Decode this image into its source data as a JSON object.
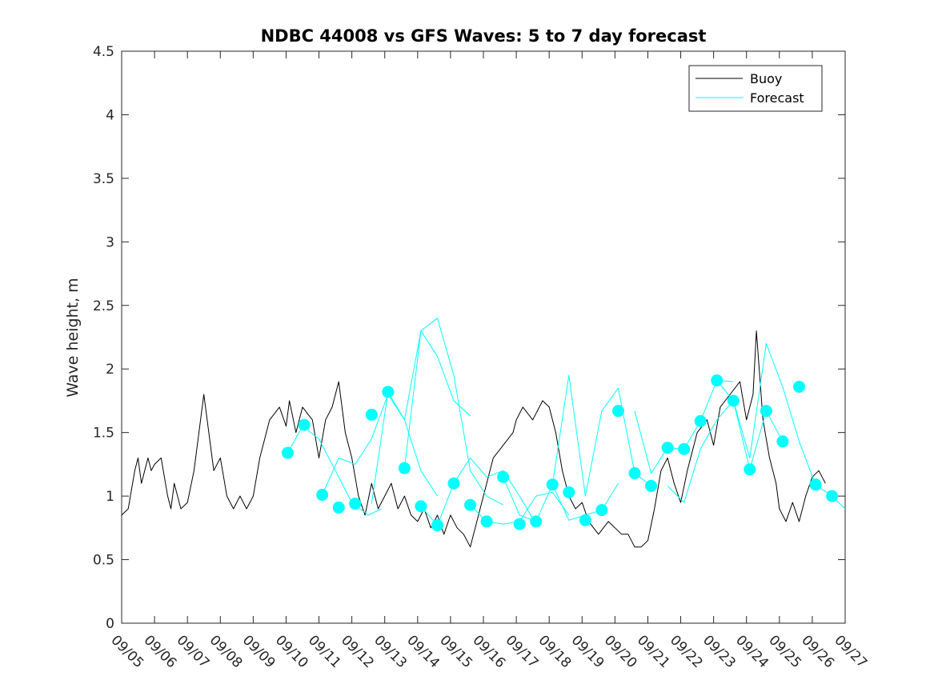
{
  "chart_data": {
    "type": "line",
    "title": "NDBC 44008 vs GFS Waves: 5 to 7 day forecast",
    "xlabel": "",
    "ylabel": "Wave height, m",
    "ylim": [
      0,
      4.5
    ],
    "xlim": [
      0,
      22
    ],
    "y_ticks": [
      "0",
      "0.5",
      "1",
      "1.5",
      "2",
      "2.5",
      "3",
      "3.5",
      "4",
      "4.5"
    ],
    "x_ticks": [
      "09/05",
      "09/06",
      "09/07",
      "09/08",
      "09/09",
      "09/10",
      "09/11",
      "09/12",
      "09/13",
      "09/14",
      "09/15",
      "09/16",
      "09/17",
      "09/18",
      "09/19",
      "09/20",
      "09/21",
      "09/22",
      "09/23",
      "09/24",
      "09/25",
      "09/26",
      "09/27"
    ],
    "legend": [
      "Buoy",
      "Forecast"
    ],
    "legend_location": "top-right",
    "colors": {
      "buoy": "#000000",
      "forecast": "#00ffff"
    },
    "series": [
      {
        "name": "Buoy",
        "x": [
          0,
          0.2,
          0.4,
          0.5,
          0.6,
          0.8,
          0.9,
          1.0,
          1.2,
          1.4,
          1.5,
          1.6,
          1.8,
          2.0,
          2.2,
          2.5,
          2.8,
          3.0,
          3.2,
          3.4,
          3.6,
          3.8,
          4.0,
          4.2,
          4.5,
          4.8,
          5.0,
          5.1,
          5.3,
          5.5,
          5.8,
          6.0,
          6.2,
          6.4,
          6.6,
          6.8,
          7.0,
          7.2,
          7.4,
          7.6,
          7.8,
          8.0,
          8.2,
          8.4,
          8.6,
          8.8,
          9.0,
          9.2,
          9.4,
          9.6,
          9.8,
          10.0,
          10.2,
          10.4,
          10.6,
          10.8,
          11.0,
          11.3,
          11.6,
          11.9,
          12.0,
          12.2,
          12.5,
          12.8,
          13.0,
          13.2,
          13.4,
          13.6,
          13.8,
          14.0,
          14.2,
          14.5,
          14.8,
          15.0,
          15.2,
          15.4,
          15.6,
          15.8,
          16.0,
          16.2,
          16.4,
          16.6,
          16.8,
          17.0,
          17.2,
          17.5,
          17.8,
          18.0,
          18.2,
          18.5,
          18.8,
          19.0,
          19.2,
          19.3,
          19.5,
          19.7,
          19.9,
          20.0,
          20.2,
          20.4,
          20.6,
          20.8,
          21.0,
          21.2,
          21.4
        ],
        "values": [
          0.85,
          0.9,
          1.2,
          1.3,
          1.1,
          1.3,
          1.2,
          1.25,
          1.3,
          1.0,
          0.9,
          1.1,
          0.9,
          0.95,
          1.2,
          1.8,
          1.2,
          1.3,
          1.0,
          0.9,
          1.0,
          0.9,
          1.0,
          1.3,
          1.6,
          1.7,
          1.55,
          1.75,
          1.5,
          1.7,
          1.6,
          1.3,
          1.6,
          1.7,
          1.9,
          1.5,
          1.3,
          1.0,
          0.85,
          1.1,
          0.9,
          1.0,
          1.1,
          0.9,
          1.0,
          0.85,
          0.8,
          0.9,
          0.75,
          0.85,
          0.7,
          0.85,
          0.75,
          0.7,
          0.6,
          0.8,
          1.0,
          1.3,
          1.4,
          1.5,
          1.6,
          1.7,
          1.6,
          1.75,
          1.7,
          1.5,
          1.2,
          1.0,
          0.9,
          0.95,
          0.8,
          0.7,
          0.8,
          0.75,
          0.7,
          0.7,
          0.6,
          0.6,
          0.65,
          0.9,
          1.2,
          1.3,
          1.1,
          0.95,
          1.2,
          1.5,
          1.6,
          1.4,
          1.7,
          1.8,
          1.9,
          1.6,
          1.8,
          2.3,
          1.6,
          1.3,
          1.1,
          0.9,
          0.8,
          0.95,
          0.8,
          1.0,
          1.15,
          1.2,
          1.1
        ]
      },
      {
        "name": "Forecast",
        "x": [
          5.05,
          5.5,
          6.0,
          6.5,
          7.0,
          7.5,
          7.9
        ],
        "values": [
          1.34,
          1.55,
          1.45,
          1.2,
          0.95,
          0.85,
          0.9
        ]
      },
      {
        "name": "Forecast",
        "x": [
          6.1,
          6.6,
          7.1,
          7.6,
          8.1,
          8.6,
          9.1,
          9.6
        ],
        "values": [
          1.01,
          1.3,
          1.25,
          1.45,
          1.8,
          1.6,
          1.2,
          1.0
        ]
      },
      {
        "name": "Forecast",
        "x": [
          7.6,
          8.1,
          8.6,
          9.1,
          9.6,
          10.1,
          10.6
        ],
        "values": [
          0.94,
          1.82,
          1.6,
          2.3,
          2.1,
          1.75,
          1.63
        ]
      },
      {
        "name": "Forecast",
        "x": [
          8.6,
          9.1,
          9.6,
          10.1,
          10.6,
          11.1,
          11.6
        ],
        "values": [
          1.22,
          2.3,
          2.4,
          1.95,
          1.2,
          1.0,
          0.93
        ]
      },
      {
        "name": "Forecast",
        "x": [
          9.1,
          9.6,
          10.1,
          10.6,
          11.1,
          11.6,
          12.1,
          12.6
        ],
        "values": [
          0.92,
          0.77,
          1.1,
          1.3,
          1.15,
          1.2,
          1.0,
          0.78
        ]
      },
      {
        "name": "Forecast",
        "x": [
          10.6,
          11.1,
          11.6,
          12.1,
          12.6,
          13.1,
          13.6
        ],
        "values": [
          0.93,
          0.8,
          0.78,
          0.8,
          1.0,
          1.03,
          0.85
        ]
      },
      {
        "name": "Forecast",
        "x": [
          11.6,
          12.1,
          12.6,
          13.1,
          13.6,
          14.1,
          14.6,
          15.1
        ],
        "values": [
          1.15,
          0.85,
          0.8,
          1.09,
          0.81,
          0.85,
          0.89,
          1.1
        ]
      },
      {
        "name": "Forecast",
        "x": [
          13.1,
          13.6,
          14.1,
          14.6,
          15.1,
          15.6,
          16.1
        ],
        "values": [
          1.09,
          1.95,
          1.0,
          1.67,
          1.85,
          1.18,
          1.08
        ]
      },
      {
        "name": "Forecast",
        "x": [
          15.6,
          16.1,
          16.6,
          17.1,
          17.6,
          18.1,
          18.6
        ],
        "values": [
          1.67,
          1.18,
          1.38,
          1.37,
          1.59,
          1.91,
          1.9
        ]
      },
      {
        "name": "Forecast",
        "x": [
          16.6,
          17.1,
          17.6,
          18.1,
          18.6,
          19.1,
          19.6,
          20.1
        ],
        "values": [
          1.08,
          0.95,
          1.37,
          1.6,
          1.75,
          1.21,
          1.67,
          1.43
        ]
      },
      {
        "name": "Forecast",
        "x": [
          18.1,
          18.6,
          19.1,
          19.6,
          20.1,
          20.6,
          21.1,
          21.6,
          22.0
        ],
        "values": [
          1.91,
          1.75,
          1.3,
          2.2,
          1.86,
          1.43,
          1.09,
          1.0,
          0.9
        ]
      }
    ],
    "markers": {
      "name": "Forecast start points",
      "x": [
        5.05,
        5.55,
        6.1,
        6.6,
        7.1,
        7.6,
        8.1,
        8.6,
        9.1,
        9.6,
        10.1,
        10.6,
        11.1,
        11.6,
        12.1,
        12.6,
        13.1,
        13.6,
        14.1,
        14.6,
        15.1,
        15.6,
        16.1,
        16.6,
        17.1,
        17.6,
        18.1,
        18.6,
        19.1,
        19.6,
        20.1,
        20.6,
        21.1,
        21.6
      ],
      "values": [
        1.34,
        1.56,
        1.01,
        0.91,
        0.94,
        1.64,
        1.82,
        1.22,
        0.92,
        0.77,
        1.1,
        0.93,
        0.8,
        1.15,
        0.78,
        0.8,
        1.09,
        1.03,
        0.81,
        0.89,
        1.67,
        1.18,
        1.08,
        1.38,
        1.37,
        1.59,
        1.91,
        1.75,
        1.21,
        1.67,
        1.43,
        1.86,
        1.09,
        1.0
      ]
    }
  }
}
